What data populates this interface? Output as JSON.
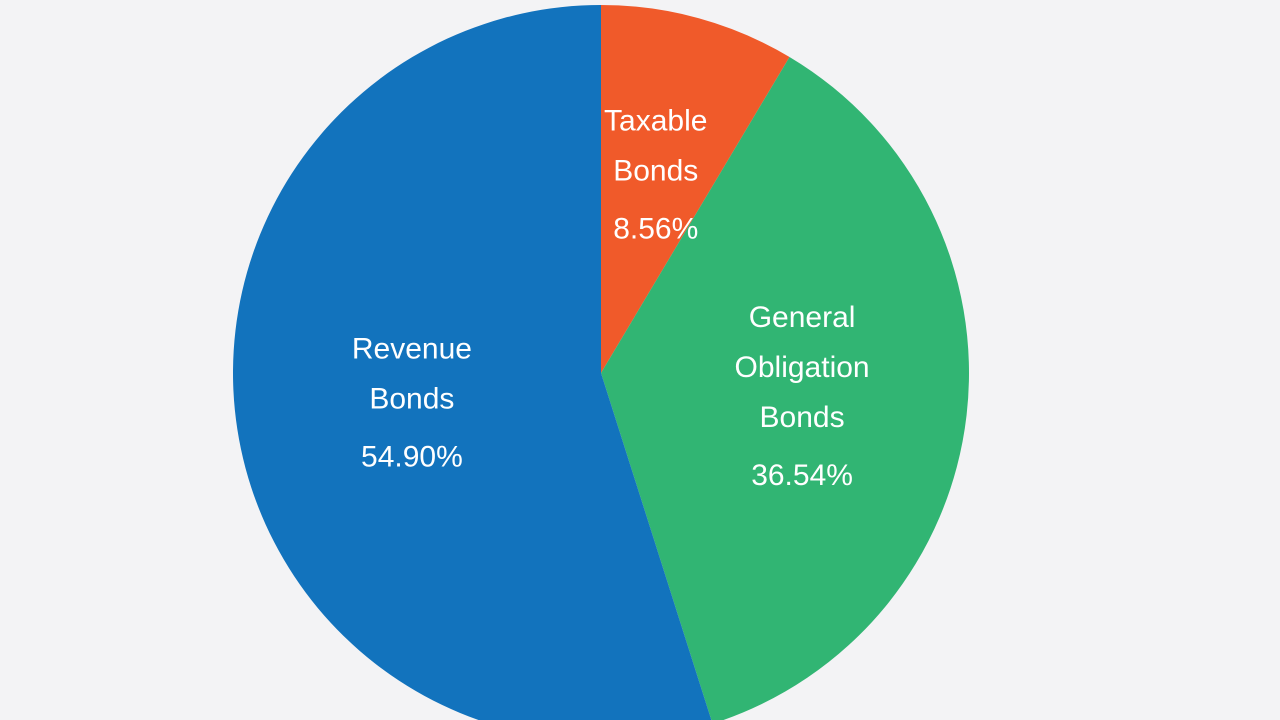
{
  "chart_data": {
    "type": "pie",
    "title": "",
    "start_angle_deg": 0,
    "direction": "clockwise",
    "slices": [
      {
        "name": "Taxable Bonds",
        "label_lines": [
          "Taxable",
          "Bonds"
        ],
        "value": 8.56,
        "value_label": "8.56%",
        "color": "#f05a2a"
      },
      {
        "name": "General Obligation Bonds",
        "label_lines": [
          "General",
          "Obligation",
          "Bonds"
        ],
        "value": 36.54,
        "value_label": "36.54%",
        "color": "#31b573"
      },
      {
        "name": "Revenue Bonds",
        "label_lines": [
          "Revenue",
          "Bonds"
        ],
        "value": 54.9,
        "value_label": "54.90%",
        "color": "#1273bd"
      }
    ]
  }
}
